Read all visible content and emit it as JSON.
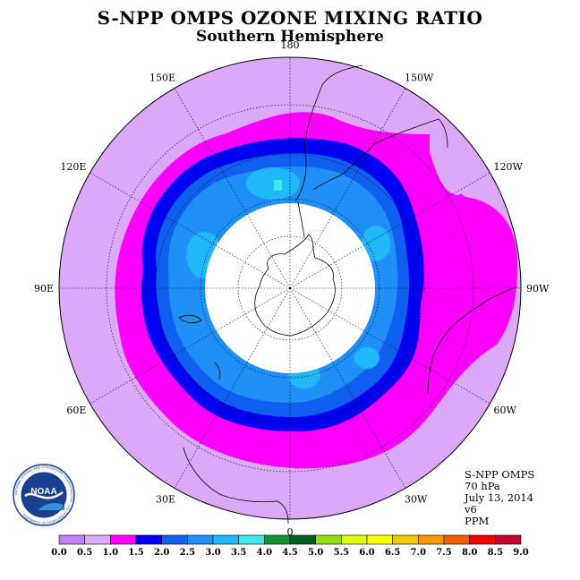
{
  "title": "S-NPP OMPS OZONE MIXING RATIO",
  "subtitle": "Southern Hemisphere",
  "info": {
    "satellite": "S-NPP OMPS",
    "level": "70 hPa",
    "date": "July 13, 2014",
    "version": "v6",
    "units": "PPM"
  },
  "logo": {
    "center_text": "NOAA",
    "ring_text": "NATIONAL OCEANIC AND ATMOSPHERIC ADMINISTRATION · U.S. DEPARTMENT OF COMMERCE"
  },
  "longitude_labels": [
    {
      "text": "90W",
      "lon": -90
    },
    {
      "text": "60W",
      "lon": -60
    },
    {
      "text": "30W",
      "lon": -30
    },
    {
      "text": "0",
      "lon": 0
    },
    {
      "text": "30E",
      "lon": 30
    },
    {
      "text": "60E",
      "lon": 60
    },
    {
      "text": "90E",
      "lon": 90
    },
    {
      "text": "120E",
      "lon": 120
    },
    {
      "text": "150E",
      "lon": 150
    },
    {
      "text": "180",
      "lon": 180
    },
    {
      "text": "150W",
      "lon": -150
    },
    {
      "text": "120W",
      "lon": -120
    }
  ],
  "colorbar": {
    "ticks": [
      "0.0",
      "0.5",
      "1.0",
      "1.5",
      "2.0",
      "2.5",
      "3.0",
      "3.5",
      "4.0",
      "4.5",
      "5.0",
      "5.5",
      "6.0",
      "6.5",
      "7.0",
      "7.5",
      "8.0",
      "8.5",
      "9.0"
    ],
    "colors": [
      "#c080f0",
      "#dca8f8",
      "#ff00ff",
      "#0000f0",
      "#1060f0",
      "#2090f8",
      "#20b8f8",
      "#40e8f0",
      "#109030",
      "#006020",
      "#90e010",
      "#e0f810",
      "#ffff00",
      "#f0c800",
      "#f89800",
      "#f06000",
      "#f00000",
      "#c00030",
      "#905030"
    ]
  },
  "chart_data": {
    "type": "heatmap",
    "title": "S-NPP OMPS OZONE MIXING RATIO",
    "subtitle": "Southern Hemisphere",
    "variable": "Ozone mixing ratio",
    "units": "PPM",
    "pressure_level": "70 hPa",
    "date": "July 13, 2014",
    "version": "v6",
    "projection": "polar stereographic, south pole centered",
    "color_levels": [
      0.0,
      0.5,
      1.0,
      1.5,
      2.0,
      2.5,
      3.0,
      3.5,
      4.0,
      4.5,
      5.0,
      5.5,
      6.0,
      6.5,
      7.0,
      7.5,
      8.0,
      8.5,
      9.0
    ],
    "regions": [
      {
        "description": "no data over polar night region",
        "value": null
      },
      {
        "description": "inner vortex ring",
        "range": [
          2.0,
          2.5
        ]
      },
      {
        "description": "embedded maxima",
        "range": [
          2.5,
          3.5
        ]
      },
      {
        "description": "vortex edge",
        "range": [
          1.5,
          2.0
        ]
      },
      {
        "description": "collar band",
        "range": [
          1.0,
          1.5
        ]
      },
      {
        "description": "outer mid-latitudes",
        "range": [
          0.5,
          1.0
        ]
      }
    ]
  }
}
